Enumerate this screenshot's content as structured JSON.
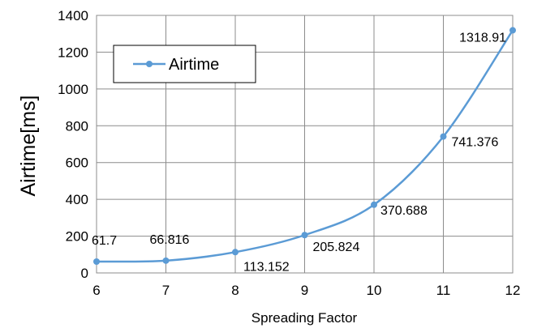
{
  "chart_data": {
    "type": "line",
    "title": "",
    "xlabel": "Spreading Factor",
    "ylabel": "Airtime[ms]",
    "x": [
      6,
      7,
      8,
      9,
      10,
      11,
      12
    ],
    "xlim": [
      6,
      12
    ],
    "ylim": [
      0,
      1400
    ],
    "x_ticks": [
      "6",
      "7",
      "8",
      "9",
      "10",
      "11",
      "12"
    ],
    "y_ticks": [
      "0",
      "200",
      "400",
      "600",
      "800",
      "1000",
      "1200",
      "1400"
    ],
    "grid": true,
    "smooth": true,
    "legend_position": "top-left",
    "series": [
      {
        "name": "Airtime",
        "color": "#5B9BD5",
        "values": [
          61.7,
          66.816,
          113.152,
          205.824,
          370.688,
          741.376,
          1318.91
        ],
        "labels": [
          "61.7",
          "66.816",
          "113.152",
          "205.824",
          "370.688",
          "741.376",
          "1318.91"
        ]
      }
    ]
  }
}
